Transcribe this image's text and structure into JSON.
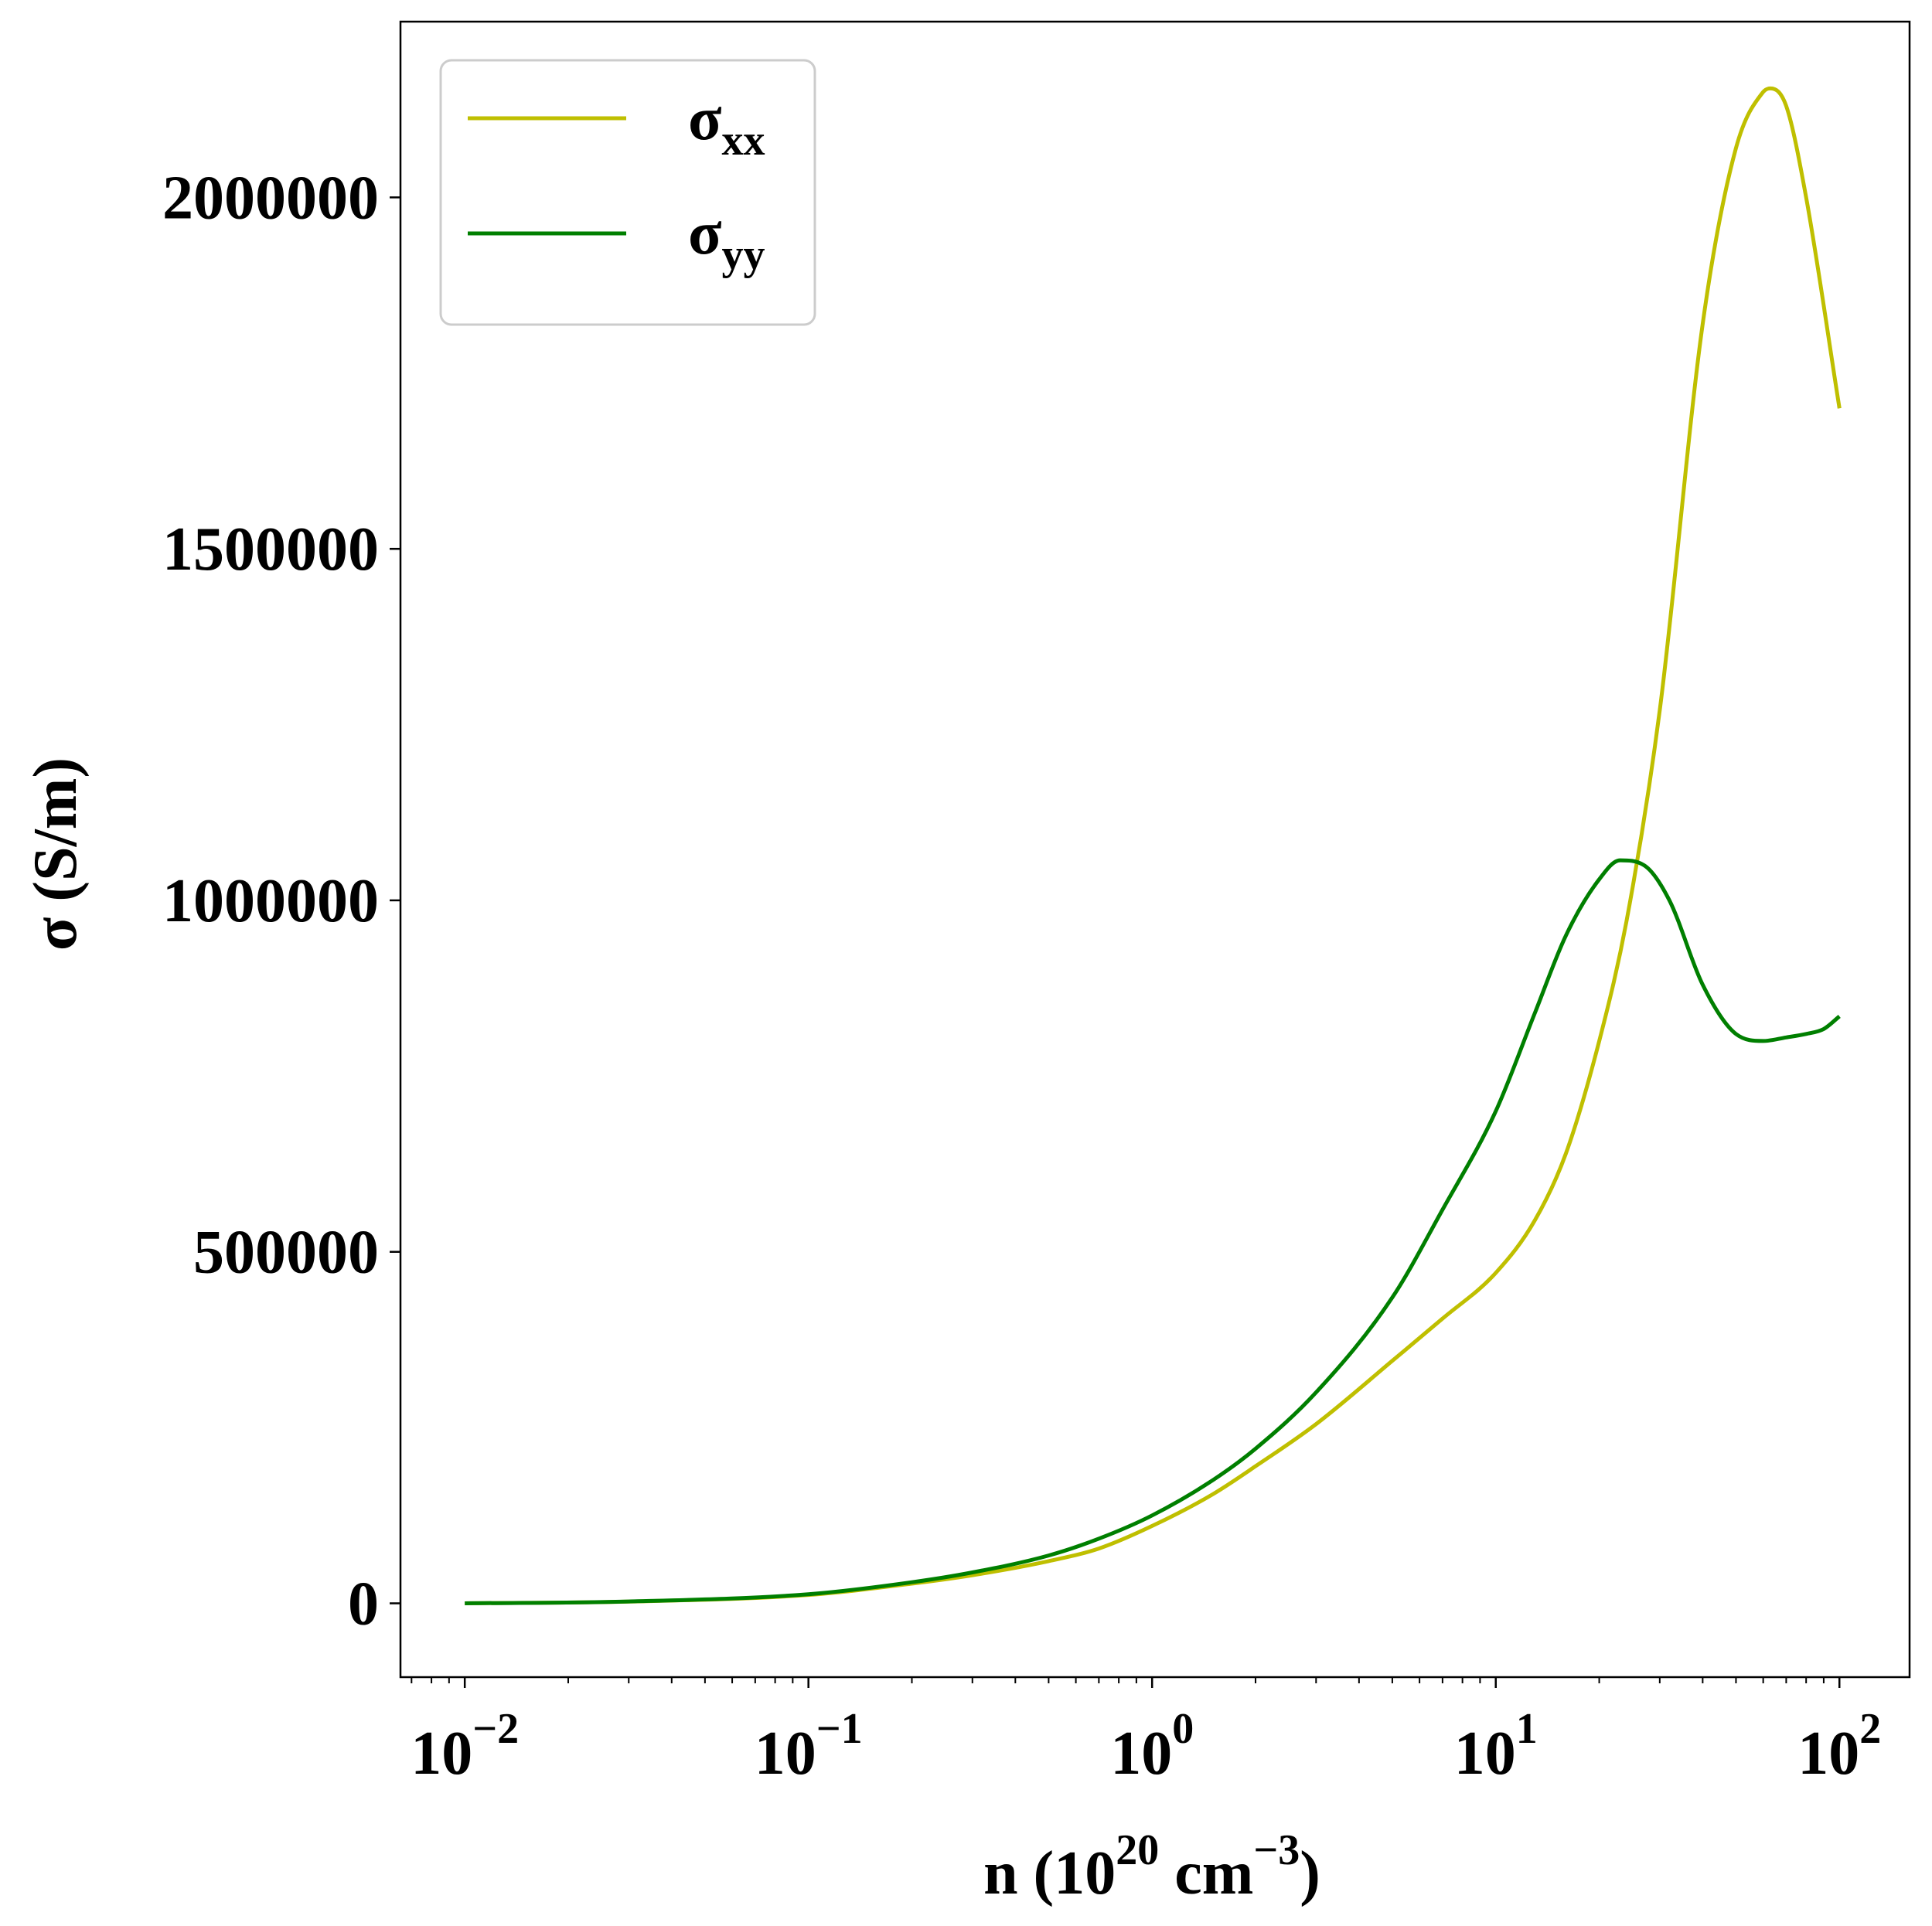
{
  "chart_data": {
    "type": "line",
    "xscale": "log",
    "xlim": [
      0.0065,
      160
    ],
    "ylim": [
      -105000,
      2250000
    ],
    "xlabel": {
      "main": "n (10",
      "sup1": "20",
      "mid": " cm",
      "sup2": "−3",
      "end": ")"
    },
    "ylabel": "σ (S/m)",
    "xticks": [
      {
        "value": 0.01,
        "base": "10",
        "exp": "−2"
      },
      {
        "value": 0.1,
        "base": "10",
        "exp": "−1"
      },
      {
        "value": 1,
        "base": "10",
        "exp": "0"
      },
      {
        "value": 10,
        "base": "10",
        "exp": "1"
      },
      {
        "value": 100,
        "base": "10",
        "exp": "2"
      }
    ],
    "yticks": [
      {
        "value": 0,
        "label": "0"
      },
      {
        "value": 500000,
        "label": "500000"
      },
      {
        "value": 1000000,
        "label": "1000000"
      },
      {
        "value": 1500000,
        "label": "1500000"
      },
      {
        "value": 2000000,
        "label": "2000000"
      }
    ],
    "grid": false,
    "legend": "top-left",
    "series": [
      {
        "name": "σxx",
        "name_base": "σ",
        "name_sub": "xx",
        "color": "#bfbf00",
        "x": [
          0.01,
          0.03,
          0.1,
          0.2,
          0.3,
          0.5,
          0.7,
          1,
          1.5,
          2,
          3,
          5,
          7,
          10,
          13,
          16,
          20,
          24,
          30,
          40,
          50,
          60,
          63,
          70,
          80,
          100
        ],
        "y": [
          0,
          2500,
          12000,
          28000,
          40000,
          60000,
          78000,
          110000,
          155000,
          195000,
          255000,
          345000,
          405000,
          470000,
          545000,
          640000,
          800000,
          970000,
          1270000,
          1820000,
          2070000,
          2150000,
          2155000,
          2130000,
          2000000,
          1700000
        ]
      },
      {
        "name": "σyy",
        "name_base": "σ",
        "name_sub": "yy",
        "color": "#007f00",
        "x": [
          0.01,
          0.03,
          0.1,
          0.2,
          0.3,
          0.5,
          0.7,
          1,
          1.5,
          2,
          3,
          5,
          7,
          10,
          13,
          16,
          20,
          23,
          27,
          32,
          40,
          50,
          60,
          70,
          80,
          90,
          100
        ],
        "y": [
          0,
          2600,
          13000,
          30000,
          44000,
          68000,
          92000,
          125000,
          175000,
          220000,
          300000,
          435000,
          560000,
          700000,
          840000,
          950000,
          1030000,
          1057000,
          1050000,
          1000000,
          880000,
          810000,
          800000,
          805000,
          810000,
          817000,
          835000
        ]
      }
    ]
  }
}
